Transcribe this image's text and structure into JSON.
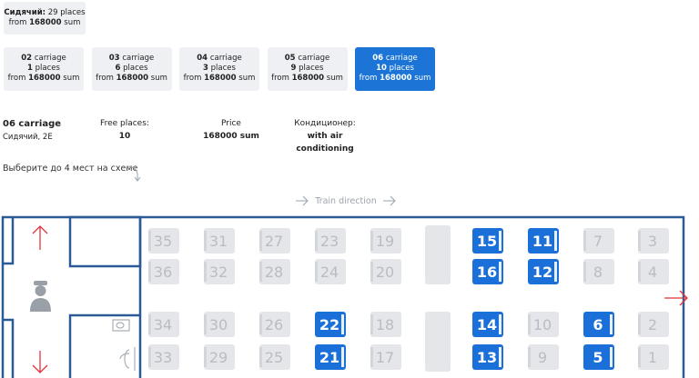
{
  "summary": {
    "class": "Сидячий:",
    "places": "29 places",
    "from": "from",
    "price": "168000",
    "currency": "sum"
  },
  "carriages": [
    {
      "number": "02",
      "unit": "carriage",
      "places": "1",
      "places_unit": "places",
      "from": "from",
      "price": "168000",
      "currency": "sum",
      "selected": false
    },
    {
      "number": "03",
      "unit": "carriage",
      "places": "6",
      "places_unit": "places",
      "from": "from",
      "price": "168000",
      "currency": "sum",
      "selected": false
    },
    {
      "number": "04",
      "unit": "carriage",
      "places": "3",
      "places_unit": "places",
      "from": "from",
      "price": "168000",
      "currency": "sum",
      "selected": false
    },
    {
      "number": "05",
      "unit": "carriage",
      "places": "9",
      "places_unit": "places",
      "from": "from",
      "price": "168000",
      "currency": "sum",
      "selected": false
    },
    {
      "number": "06",
      "unit": "carriage",
      "places": "10",
      "places_unit": "places",
      "from": "from",
      "price": "168000",
      "currency": "sum",
      "selected": true
    }
  ],
  "details": {
    "carriage": "06 carriage",
    "type": "Сидячий, 2Е",
    "free_label": "Free places:",
    "free": "10",
    "price_label": "Price",
    "price": "168000 sum",
    "ac_label": "Кондиционер:",
    "ac": "with air conditioning"
  },
  "hint": "Выберите до 4 мест на схеме",
  "direction": "Train direction",
  "seat_rows": [
    [
      {
        "n": "35",
        "free": false
      },
      {
        "n": "31",
        "free": false
      },
      {
        "n": "27",
        "free": false
      },
      {
        "n": "23",
        "free": false
      },
      {
        "n": "19",
        "free": false
      },
      {
        "n": "15",
        "free": true
      },
      {
        "n": "11",
        "free": true
      },
      {
        "n": "7",
        "free": false
      },
      {
        "n": "3",
        "free": false
      }
    ],
    [
      {
        "n": "36",
        "free": false
      },
      {
        "n": "32",
        "free": false
      },
      {
        "n": "28",
        "free": false
      },
      {
        "n": "24",
        "free": false
      },
      {
        "n": "20",
        "free": false
      },
      {
        "n": "16",
        "free": true
      },
      {
        "n": "12",
        "free": true
      },
      {
        "n": "8",
        "free": false
      },
      {
        "n": "4",
        "free": false
      }
    ],
    [
      {
        "n": "34",
        "free": false
      },
      {
        "n": "30",
        "free": false
      },
      {
        "n": "26",
        "free": false
      },
      {
        "n": "22",
        "free": true
      },
      {
        "n": "18",
        "free": false
      },
      {
        "n": "14",
        "free": true
      },
      {
        "n": "10",
        "free": false
      },
      {
        "n": "6",
        "free": true
      },
      {
        "n": "2",
        "free": false
      }
    ],
    [
      {
        "n": "33",
        "free": false
      },
      {
        "n": "29",
        "free": false
      },
      {
        "n": "25",
        "free": false
      },
      {
        "n": "21",
        "free": true
      },
      {
        "n": "17",
        "free": false
      },
      {
        "n": "13",
        "free": true
      },
      {
        "n": "9",
        "free": false
      },
      {
        "n": "5",
        "free": true
      },
      {
        "n": "1",
        "free": false
      }
    ]
  ]
}
